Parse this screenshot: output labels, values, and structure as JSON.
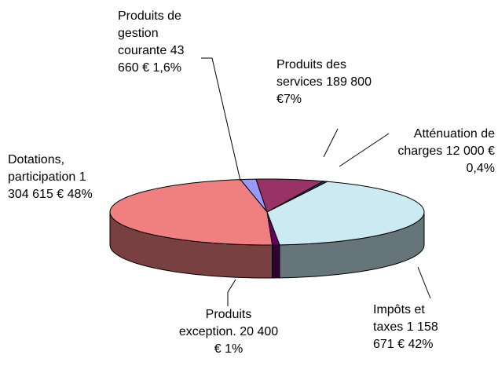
{
  "chart_data": {
    "type": "pie3d",
    "categories": [
      "Produits de gestion courante",
      "Produits des services",
      "Atténuation de charges",
      "Impôts et taxes",
      "Produits exception.",
      "Dotations, participation"
    ],
    "values": [
      43660,
      189800,
      12000,
      1158671,
      20400,
      1304615
    ],
    "value_labels": [
      "43 660 €",
      "189 800 €",
      "12 000 €",
      "1 158 671 €",
      "20 400 €",
      "1 304 615 €"
    ],
    "percents": [
      1.6,
      7,
      0.4,
      42,
      1,
      48
    ],
    "percent_labels": [
      "1,6%",
      "7%",
      "0,4%",
      "42%",
      "1%",
      "48%"
    ],
    "colors": [
      "#9999ff",
      "#993366",
      "#1f2f6f",
      "#cceaf2",
      "#660066",
      "#f08080"
    ]
  }
}
